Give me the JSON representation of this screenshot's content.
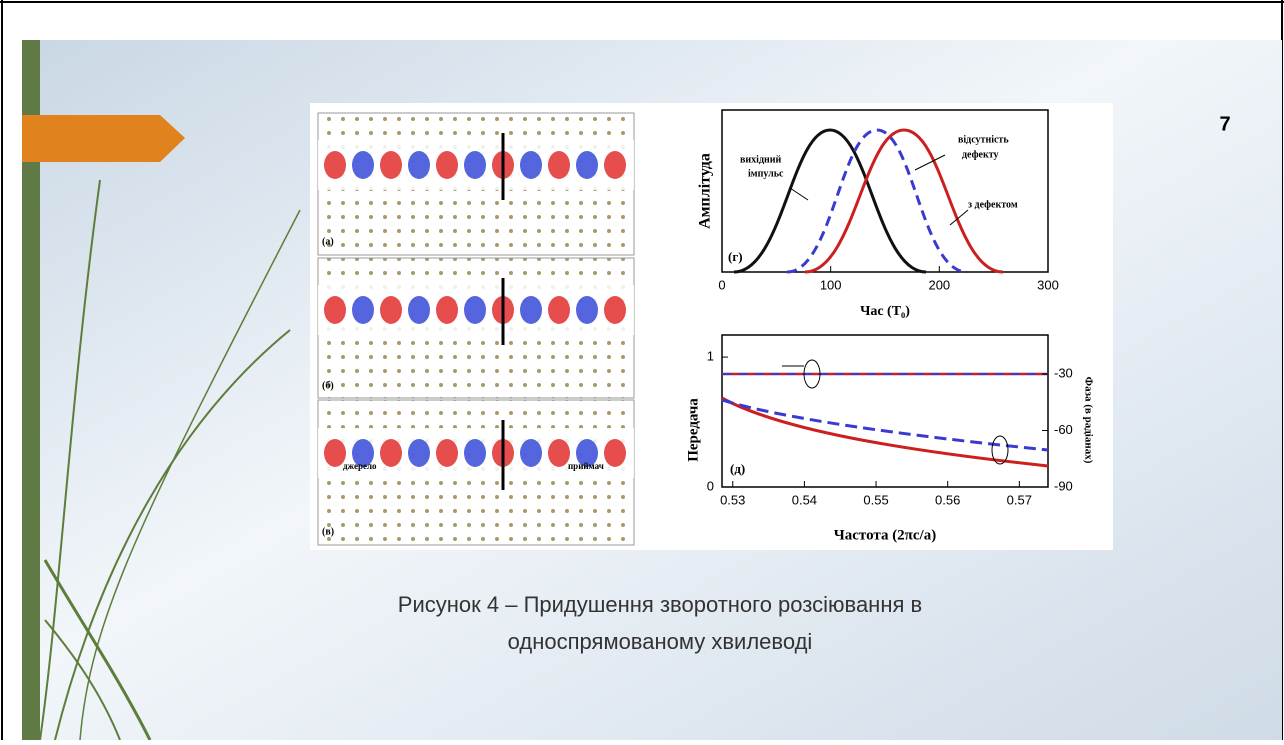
{
  "slide": {
    "number": "7",
    "caption": [
      "Рисунок 4 – Придушення зворотного розсіювання в",
      "односпрямованому хвилеводі"
    ]
  },
  "figure": {
    "left_panels": [
      {
        "label": "(а)"
      },
      {
        "label": "(б)"
      },
      {
        "label": "(в)",
        "source": "джерело",
        "receiver": "приймач"
      }
    ],
    "plot_g": {
      "label": "(г)",
      "y_label": "Амплітуда",
      "x_label": "Час (T₀)",
      "xlim": [
        0,
        300
      ],
      "xticks": [
        0,
        100,
        200,
        300
      ],
      "annotations": {
        "input": [
          "вихідний",
          "імпульс"
        ],
        "no_defect": [
          "відсутність",
          "дефекту"
        ],
        "defect": "з дефектом"
      }
    },
    "plot_d": {
      "label": "(д)",
      "y_label": "Передача",
      "y2_label": "Фаза (в радіанах)",
      "x_label": "Частота (2πc/a)",
      "xlim": [
        0.5285,
        0.574
      ],
      "xticks": [
        0.53,
        0.54,
        0.55,
        0.56,
        0.57
      ],
      "ylim": [
        0,
        1.17
      ],
      "yticks": [
        0,
        1
      ],
      "y2lim": [
        -90,
        -9.3
      ],
      "y2ticks": [
        -30,
        -60,
        -90
      ]
    }
  }
}
